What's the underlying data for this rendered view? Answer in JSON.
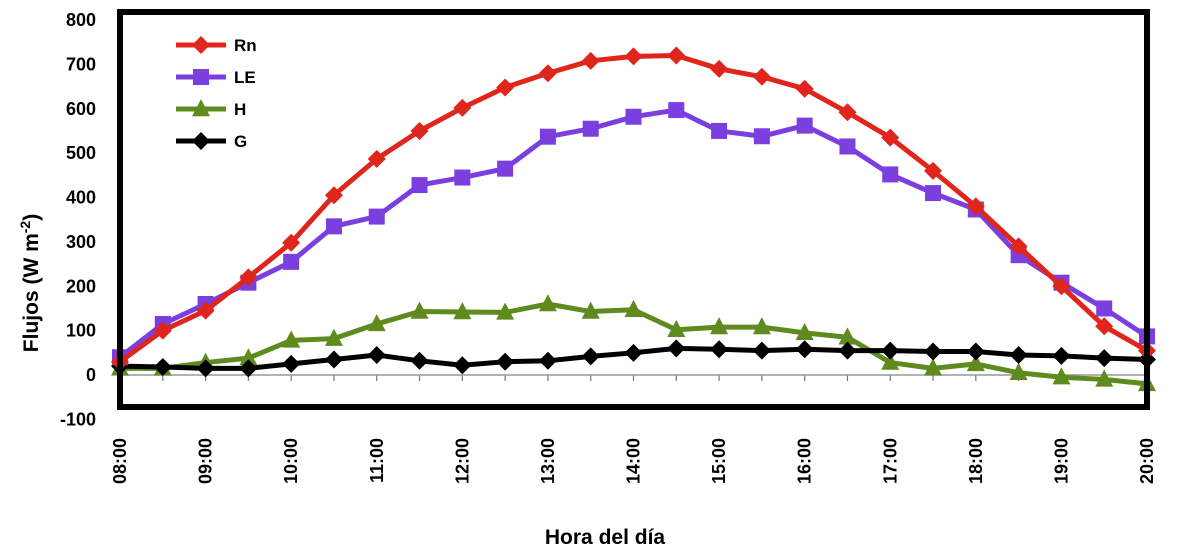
{
  "chart_data": {
    "type": "line",
    "xlabel": "Hora del día",
    "ylabel": "Flujos (W m",
    "ylabel_sup": "-2",
    "ylabel_close": ")",
    "ylim": [
      -100,
      800
    ],
    "yticks": [
      -100,
      0,
      100,
      200,
      300,
      400,
      500,
      600,
      700,
      800
    ],
    "x": [
      "08:00",
      "08:30",
      "09:00",
      "09:30",
      "10:00",
      "10:30",
      "11:00",
      "11:30",
      "12:00",
      "12:30",
      "13:00",
      "13:30",
      "14:00",
      "14:30",
      "15:00",
      "15:30",
      "16:00",
      "16:30",
      "17:00",
      "17:30",
      "18:00",
      "18:30",
      "19:00",
      "19:30",
      "20:00"
    ],
    "xtick_labels": [
      "08:00",
      "09:00",
      "10:00",
      "11:00",
      "12:00",
      "13:00",
      "14:00",
      "15:00",
      "16:00",
      "17:00",
      "18:00",
      "19:00",
      "20:00"
    ],
    "legend_position": "top-left",
    "series": [
      {
        "name": "Rn",
        "color": "#e0261c",
        "marker": "diamond",
        "values": [
          30,
          100,
          145,
          220,
          298,
          405,
          487,
          550,
          602,
          648,
          680,
          708,
          718,
          720,
          690,
          672,
          645,
          592,
          535,
          460,
          380,
          290,
          200,
          110,
          55
        ]
      },
      {
        "name": "LE",
        "color": "#7b3fe0",
        "marker": "square",
        "values": [
          40,
          115,
          160,
          208,
          255,
          335,
          357,
          428,
          445,
          465,
          537,
          555,
          582,
          597,
          550,
          538,
          562,
          515,
          452,
          410,
          373,
          270,
          208,
          150,
          87
        ]
      },
      {
        "name": "H",
        "color": "#5e8a1e",
        "marker": "triangle",
        "values": [
          15,
          15,
          28,
          38,
          78,
          82,
          115,
          143,
          142,
          141,
          160,
          143,
          147,
          102,
          108,
          108,
          95,
          85,
          28,
          15,
          25,
          5,
          -5,
          -10,
          -20
        ]
      },
      {
        "name": "G",
        "color": "#000000",
        "marker": "diamond",
        "values": [
          20,
          18,
          15,
          15,
          25,
          35,
          45,
          32,
          22,
          30,
          32,
          42,
          50,
          60,
          58,
          55,
          58,
          55,
          55,
          53,
          53,
          45,
          43,
          38,
          35
        ]
      }
    ]
  }
}
